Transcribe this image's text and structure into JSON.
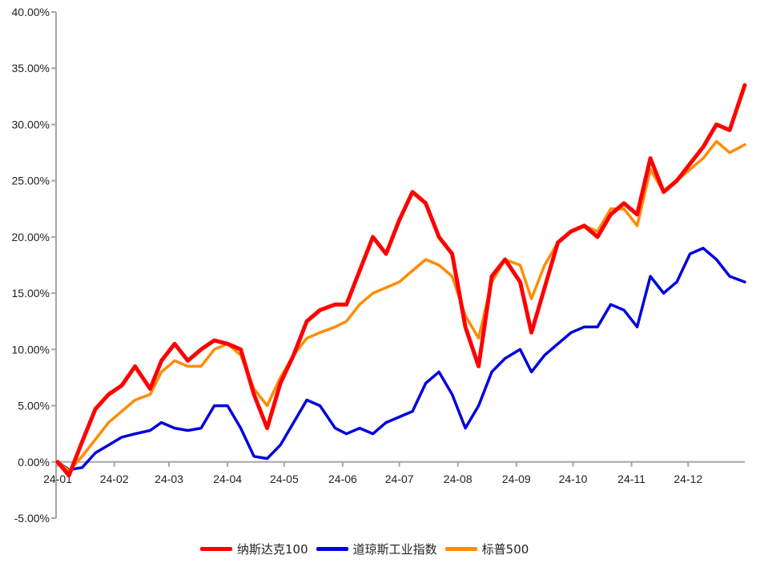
{
  "chart_data": {
    "type": "line",
    "title": "",
    "xlabel": "",
    "ylabel": "",
    "ylim": [
      -0.05,
      0.4
    ],
    "y_ticks": [
      "-5.00%",
      "0.00%",
      "5.00%",
      "10.00%",
      "15.00%",
      "20.00%",
      "25.00%",
      "30.00%",
      "35.00%",
      "40.00%"
    ],
    "x_tick_labels": [
      "24-01",
      "24-02",
      "24-03",
      "24-04",
      "24-05",
      "24-06",
      "24-07",
      "24-08",
      "24-09",
      "24-10",
      "24-11",
      "24-12"
    ],
    "legend_position": "bottom",
    "grid": false,
    "x": [
      "2024-01-02",
      "2024-01-08",
      "2024-01-15",
      "2024-01-22",
      "2024-01-29",
      "2024-02-05",
      "2024-02-12",
      "2024-02-20",
      "2024-02-26",
      "2024-03-04",
      "2024-03-11",
      "2024-03-18",
      "2024-03-25",
      "2024-04-01",
      "2024-04-08",
      "2024-04-15",
      "2024-04-22",
      "2024-04-29",
      "2024-05-06",
      "2024-05-13",
      "2024-05-20",
      "2024-05-28",
      "2024-06-03",
      "2024-06-10",
      "2024-06-17",
      "2024-06-24",
      "2024-07-01",
      "2024-07-08",
      "2024-07-15",
      "2024-07-22",
      "2024-07-29",
      "2024-08-05",
      "2024-08-12",
      "2024-08-19",
      "2024-08-26",
      "2024-09-03",
      "2024-09-09",
      "2024-09-16",
      "2024-09-23",
      "2024-09-30",
      "2024-10-07",
      "2024-10-14",
      "2024-10-21",
      "2024-10-28",
      "2024-11-04",
      "2024-11-11",
      "2024-11-18",
      "2024-11-25",
      "2024-12-02",
      "2024-12-09",
      "2024-12-16",
      "2024-12-23",
      "2024-12-31"
    ],
    "series": [
      {
        "name": "纳斯达克100",
        "color": "#ff0000",
        "values": [
          0.0,
          -0.012,
          0.018,
          0.047,
          0.06,
          0.068,
          0.085,
          0.065,
          0.09,
          0.105,
          0.09,
          0.1,
          0.108,
          0.105,
          0.1,
          0.06,
          0.03,
          0.07,
          0.095,
          0.125,
          0.135,
          0.14,
          0.14,
          0.17,
          0.2,
          0.185,
          0.215,
          0.24,
          0.23,
          0.2,
          0.185,
          0.12,
          0.085,
          0.165,
          0.18,
          0.16,
          0.115,
          0.155,
          0.195,
          0.205,
          0.21,
          0.2,
          0.22,
          0.23,
          0.22,
          0.27,
          0.24,
          0.25,
          0.265,
          0.28,
          0.3,
          0.295,
          0.335
        ]
      },
      {
        "name": "道琼斯工业指数",
        "color": "#0000dd",
        "values": [
          0.0,
          -0.007,
          -0.005,
          0.008,
          0.015,
          0.022,
          0.025,
          0.028,
          0.035,
          0.03,
          0.028,
          0.03,
          0.05,
          0.05,
          0.03,
          0.005,
          0.003,
          0.015,
          0.035,
          0.055,
          0.05,
          0.03,
          0.025,
          0.03,
          0.025,
          0.035,
          0.04,
          0.045,
          0.07,
          0.08,
          0.06,
          0.03,
          0.05,
          0.08,
          0.092,
          0.1,
          0.08,
          0.095,
          0.105,
          0.115,
          0.12,
          0.12,
          0.14,
          0.135,
          0.12,
          0.165,
          0.15,
          0.16,
          0.185,
          0.19,
          0.18,
          0.165,
          0.16
        ]
      },
      {
        "name": "标普500",
        "color": "#ff8c00",
        "values": [
          0.0,
          -0.008,
          0.005,
          0.02,
          0.035,
          0.045,
          0.055,
          0.06,
          0.08,
          0.09,
          0.085,
          0.085,
          0.1,
          0.105,
          0.095,
          0.065,
          0.05,
          0.075,
          0.095,
          0.11,
          0.115,
          0.12,
          0.125,
          0.14,
          0.15,
          0.155,
          0.16,
          0.17,
          0.18,
          0.175,
          0.165,
          0.13,
          0.11,
          0.16,
          0.18,
          0.175,
          0.145,
          0.175,
          0.195,
          0.205,
          0.21,
          0.205,
          0.225,
          0.225,
          0.21,
          0.26,
          0.24,
          0.25,
          0.26,
          0.27,
          0.285,
          0.275,
          0.282
        ]
      }
    ]
  }
}
